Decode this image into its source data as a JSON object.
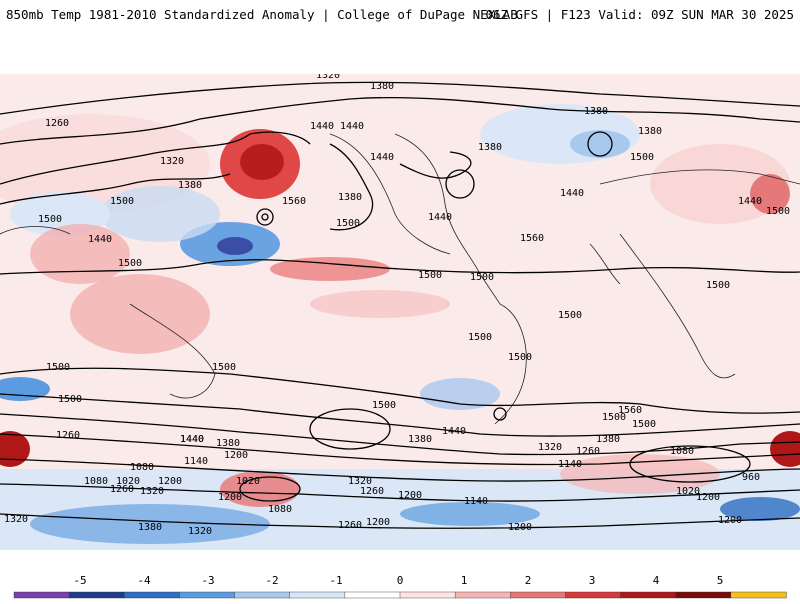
{
  "header": {
    "title_left": "850mb Temp 1981-2010 Standardized Anomaly | College of DuPage NEXLAB",
    "title_right": "06Z GFS | F123 Valid: 09Z SUN MAR 30 2025"
  },
  "map": {
    "projection": "global cylindrical",
    "field": "850mb temperature standardized anomaly (shaded)",
    "contour_field": "height contours (black lines)",
    "contour_labels": [
      {
        "text": "1320"
      },
      {
        "text": "1380"
      },
      {
        "text": "1260"
      },
      {
        "text": "1320"
      },
      {
        "text": "1380"
      },
      {
        "text": "1500"
      },
      {
        "text": "1440"
      },
      {
        "text": "1440"
      },
      {
        "text": "1440"
      },
      {
        "text": "1440"
      },
      {
        "text": "1380"
      },
      {
        "text": "1560"
      },
      {
        "text": "1500"
      },
      {
        "text": "1500"
      },
      {
        "text": "1440"
      },
      {
        "text": "1500"
      },
      {
        "text": "1380"
      },
      {
        "text": "1380"
      },
      {
        "text": "1380"
      },
      {
        "text": "1500"
      },
      {
        "text": "1440"
      },
      {
        "text": "1440"
      },
      {
        "text": "1500"
      },
      {
        "text": "1560"
      },
      {
        "text": "1500"
      },
      {
        "text": "1500"
      },
      {
        "text": "1500"
      },
      {
        "text": "1500"
      },
      {
        "text": "1500"
      },
      {
        "text": "1500"
      },
      {
        "text": "1500"
      },
      {
        "text": "1500"
      },
      {
        "text": "1500"
      },
      {
        "text": "1500"
      },
      {
        "text": "1500"
      },
      {
        "text": "1560"
      },
      {
        "text": "1500"
      },
      {
        "text": "1440"
      },
      {
        "text": "1440"
      },
      {
        "text": "1260"
      },
      {
        "text": "1440"
      },
      {
        "text": "1380"
      },
      {
        "text": "1380"
      },
      {
        "text": "1320"
      },
      {
        "text": "1380"
      },
      {
        "text": "1080"
      },
      {
        "text": "1140"
      },
      {
        "text": "1200"
      },
      {
        "text": "1260"
      },
      {
        "text": "1080"
      },
      {
        "text": "1020"
      },
      {
        "text": "1260"
      },
      {
        "text": "1320"
      },
      {
        "text": "1200"
      },
      {
        "text": "1020"
      },
      {
        "text": "1080"
      },
      {
        "text": "1320"
      },
      {
        "text": "1260"
      },
      {
        "text": "1200"
      },
      {
        "text": "1140"
      },
      {
        "text": "1080"
      },
      {
        "text": "1020"
      },
      {
        "text": "960"
      },
      {
        "text": "1380"
      },
      {
        "text": "1320"
      },
      {
        "text": "1200"
      },
      {
        "text": "1260"
      },
      {
        "text": "1200"
      },
      {
        "text": "1200"
      },
      {
        "text": "1320"
      },
      {
        "text": "1140"
      },
      {
        "text": "1200"
      },
      {
        "text": "1200"
      }
    ]
  },
  "colorbar": {
    "ticks": [
      "-5",
      "-4",
      "-3",
      "-2",
      "-1",
      "0",
      "1",
      "2",
      "3",
      "4",
      "5"
    ],
    "colors": [
      "#7b3fae",
      "#1f3c88",
      "#2d6fc2",
      "#5b9be0",
      "#a9c8ee",
      "#d9e6f7",
      "#ffffff",
      "#fde3e3",
      "#f6b5b5",
      "#e87676",
      "#d83a3a",
      "#b01818",
      "#7a0b0b",
      "#f2c21a"
    ]
  }
}
